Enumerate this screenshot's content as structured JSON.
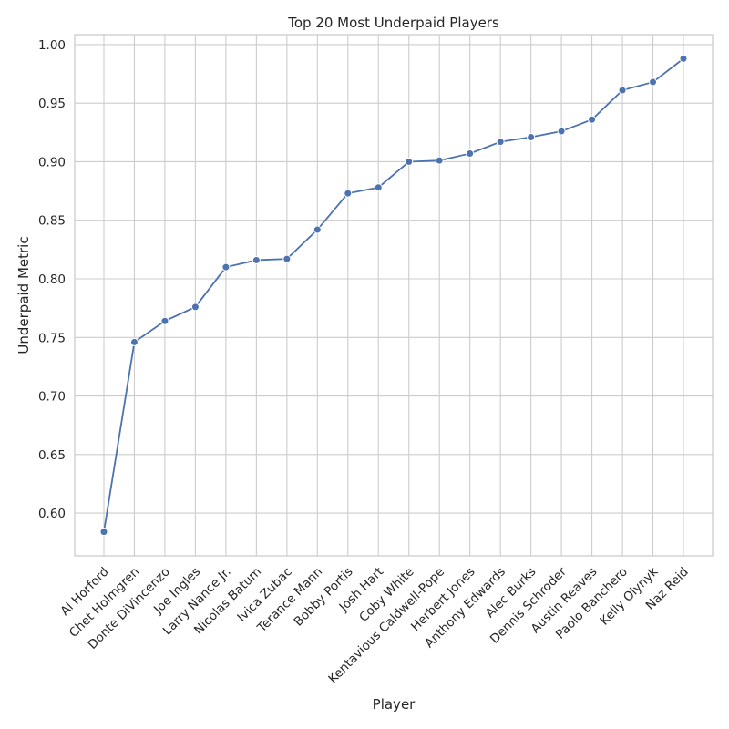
{
  "chart_data": {
    "type": "line",
    "title": "Top 20 Most Underpaid Players",
    "xlabel": "Player",
    "ylabel": "Underpaid Metric",
    "categories": [
      "Al Horford",
      "Chet Holmgren",
      "Donte DiVincenzo",
      "Joe Ingles",
      "Larry Nance Jr.",
      "Nicolas Batum",
      "Ivica Zubac",
      "Terance Mann",
      "Bobby Portis",
      "Josh Hart",
      "Coby White",
      "Kentavious Caldwell-Pope",
      "Herbert Jones",
      "Anthony Edwards",
      "Alec Burks",
      "Dennis Schroder",
      "Austin Reaves",
      "Paolo Banchero",
      "Kelly Olynyk",
      "Naz Reid"
    ],
    "series": [
      {
        "values": [
          0.584,
          0.746,
          0.764,
          0.776,
          0.81,
          0.816,
          0.817,
          0.842,
          0.873,
          0.878,
          0.9,
          0.901,
          0.907,
          0.917,
          0.921,
          0.926,
          0.936,
          0.961,
          0.968,
          0.988
        ]
      }
    ],
    "yticks": [
      0.6,
      0.65,
      0.7,
      0.75,
      0.8,
      0.85,
      0.9,
      0.95,
      1.0
    ],
    "ytick_labels": [
      "0.60",
      "0.65",
      "0.70",
      "0.75",
      "0.80",
      "0.85",
      "0.90",
      "0.95",
      "1.00"
    ],
    "ylim": [
      0.5635,
      1.0085
    ],
    "grid": true,
    "color": "#4c72b0"
  }
}
